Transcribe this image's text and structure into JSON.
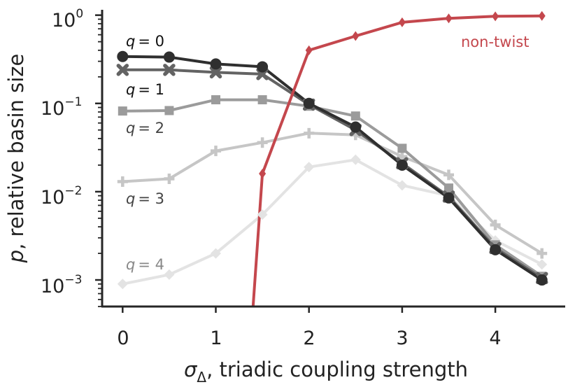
{
  "chart_data": {
    "type": "line",
    "xlabel": "σ_Δ, triadic coupling strength",
    "xlabel_parts": {
      "symbol": "σ",
      "subscript": "Δ",
      "rest": ", triadic coupling strength"
    },
    "ylabel": "p, relative basin size",
    "ylabel_parts": {
      "symbol": "p",
      "rest": ", relative basin size"
    },
    "y_scale": "log",
    "xlim": [
      -0.22,
      4.75
    ],
    "ylim": [
      0.0005,
      1.15
    ],
    "grid": false,
    "x_ticks": [
      0,
      1,
      2,
      3,
      4
    ],
    "x_tick_labels": [
      "0",
      "1",
      "2",
      "3",
      "4"
    ],
    "y_ticks": [
      0.001,
      0.01,
      0.1,
      1
    ],
    "y_tick_labels": [
      {
        "base": "10",
        "exp": "−3"
      },
      {
        "base": "10",
        "exp": "−2"
      },
      {
        "base": "10",
        "exp": "−1"
      },
      {
        "base": "10",
        "exp": "0"
      }
    ],
    "x": [
      0,
      0.5,
      1,
      1.5,
      2,
      2.5,
      3,
      3.5,
      4,
      4.5
    ],
    "series": [
      {
        "name": "q = 4",
        "symbol": "q",
        "value_text": "= 4",
        "color": "#e3e3e3",
        "label_color": "#888888",
        "marker": "diamond",
        "values": [
          0.0009,
          0.00115,
          0.002,
          0.0055,
          0.019,
          0.023,
          0.0118,
          0.009,
          0.0028,
          0.0015
        ]
      },
      {
        "name": "q = 3",
        "symbol": "q",
        "value_text": "= 3",
        "color": "#c6c6c6",
        "label_color": "#444444",
        "marker": "plus",
        "values": [
          0.013,
          0.014,
          0.029,
          0.036,
          0.046,
          0.044,
          0.025,
          0.0155,
          0.0042,
          0.002
        ]
      },
      {
        "name": "q = 2",
        "symbol": "q",
        "value_text": "= 2",
        "color": "#9b9b9b",
        "label_color": "#444444",
        "marker": "square",
        "values": [
          0.082,
          0.083,
          0.11,
          0.11,
          0.093,
          0.072,
          0.031,
          0.011,
          0.0025,
          0.0011
        ]
      },
      {
        "name": "q = 1",
        "symbol": "q",
        "value_text": "= 1",
        "color": "#636363",
        "label_color": "#111111",
        "marker": "x",
        "values": [
          0.24,
          0.24,
          0.225,
          0.215,
          0.097,
          0.05,
          0.021,
          0.0088,
          0.0023,
          0.00105
        ]
      },
      {
        "name": "q = 0",
        "symbol": "q",
        "value_text": "= 0",
        "color": "#2f2f2f",
        "label_color": "#111111",
        "marker": "circle",
        "values": [
          0.34,
          0.335,
          0.28,
          0.26,
          0.1,
          0.054,
          0.02,
          0.0085,
          0.0022,
          0.001
        ]
      },
      {
        "name": "non-twist",
        "color": "#c4474d",
        "label_color": "#c4474d",
        "marker": "thin-diamond",
        "x": [
          1.4,
          1.5,
          2,
          2.5,
          3,
          3.5,
          4,
          4.5
        ],
        "values": [
          0.0005,
          0.016,
          0.4,
          0.58,
          0.83,
          0.92,
          0.97,
          0.98
        ],
        "first_point_marker": false
      }
    ]
  }
}
